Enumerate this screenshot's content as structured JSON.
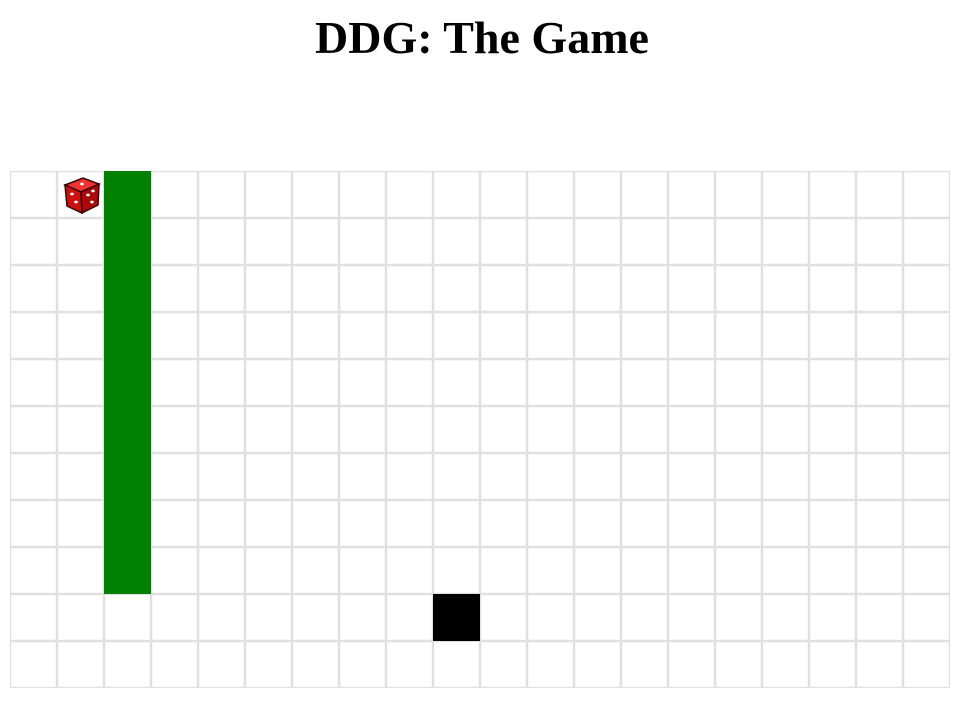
{
  "title": "DDG: The Game",
  "board": {
    "columns": 20,
    "rows": 11,
    "grid_color": "#e0e0e0",
    "background": "#ffffff"
  },
  "player": {
    "icon": "dice-icon",
    "col": 1,
    "row": 0,
    "color": "#cc1111"
  },
  "walls": [
    {
      "col": 2,
      "row_start": 0,
      "row_end": 8,
      "color": "#008000"
    }
  ],
  "blocks": [
    {
      "col": 9,
      "row": 9,
      "color": "#000000"
    }
  ]
}
